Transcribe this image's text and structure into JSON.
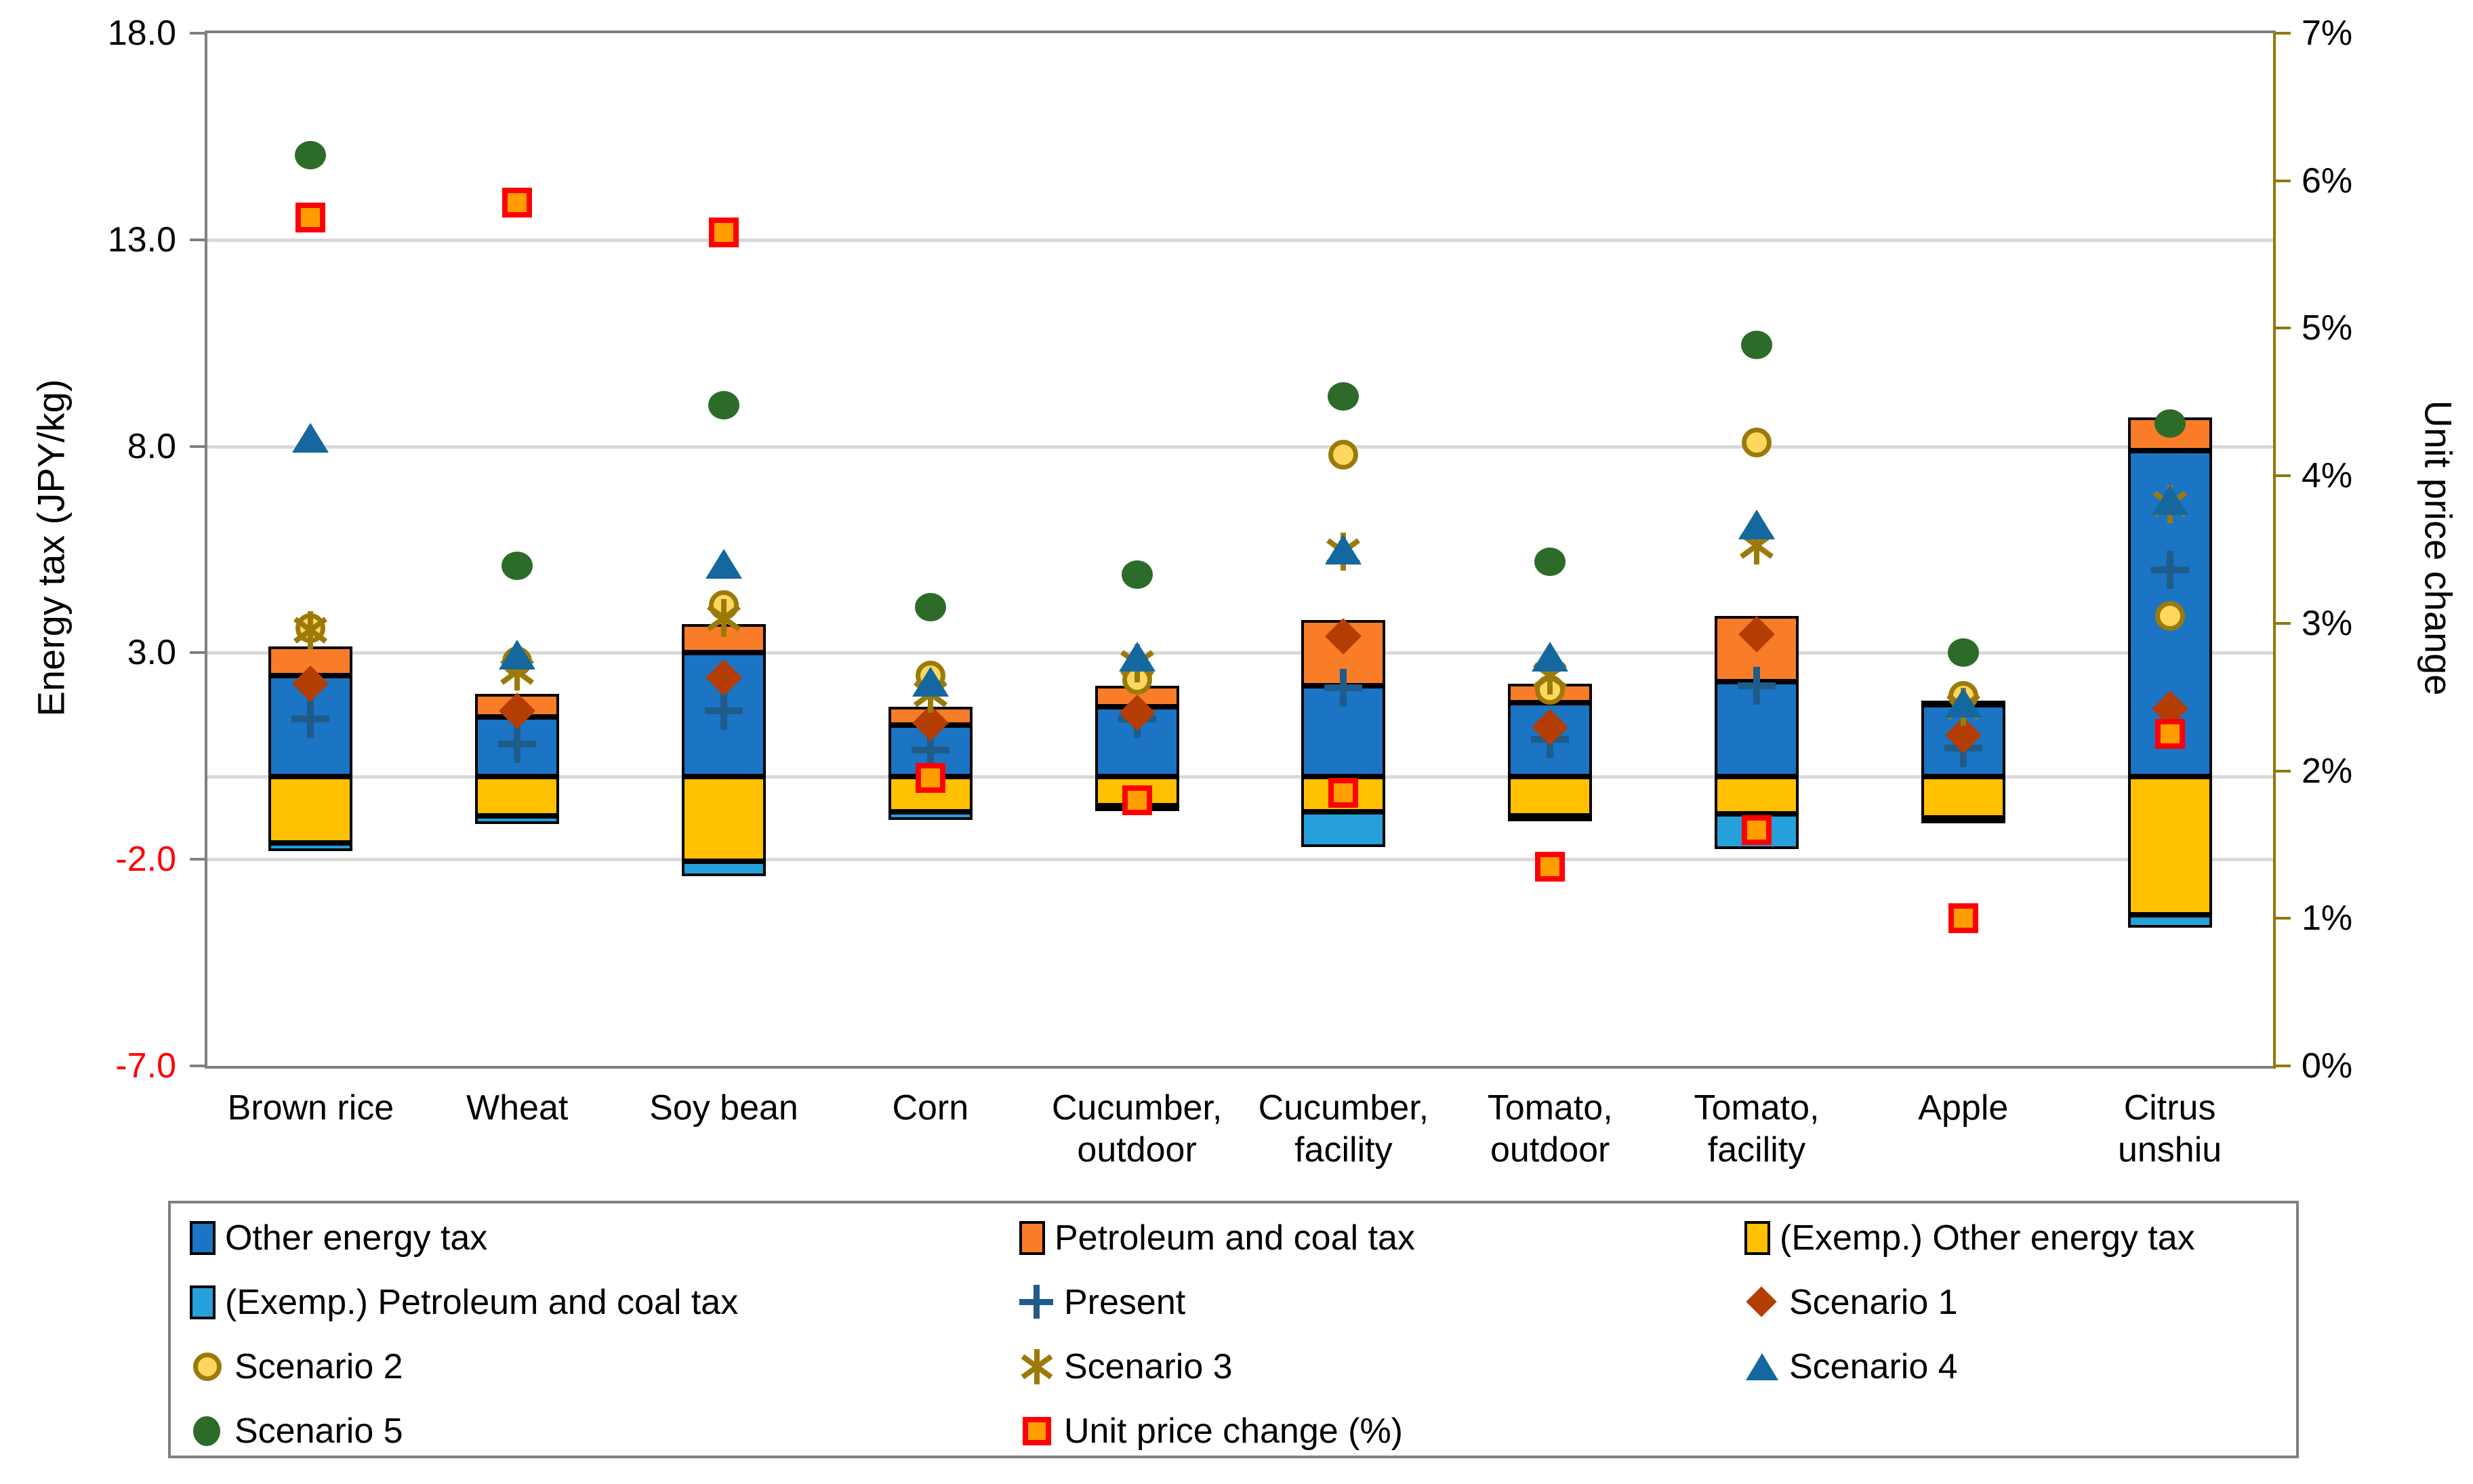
{
  "colors": {
    "bar_blue": "#1B74C4",
    "bar_orange": "#F97D28",
    "bar_yellow": "#FFC000",
    "bar_lightblue": "#25A0DA",
    "bar_border": "#000000",
    "present_plus": "#1F5C8A",
    "scenario1_diamond": "#B43D04",
    "scenario2_fill": "#FFD75E",
    "gold": "#9C7A0A",
    "scenario4_triangle": "#14689F",
    "scenario5_green": "#2C6B28",
    "unit_square_fill": "#FF9E00",
    "unit_square_border": "#FF0000",
    "gridline": "#D9D9D9",
    "axis_gray": "#808080",
    "axis_gold": "#937700",
    "negative_tick_red": "#FF0000"
  },
  "chart_data": {
    "type": "bar",
    "subtype": "stacked-bar with scatter overlay, dual axis",
    "categories": [
      "Brown rice",
      "Wheat",
      "Soy bean",
      "Corn",
      "Cucumber, outdoor",
      "Cucumber, facility",
      "Tomato, outdoor",
      "Tomato, facility",
      "Apple",
      "Citrus unshiu"
    ],
    "category_labels": [
      [
        "Brown rice"
      ],
      [
        "Wheat"
      ],
      [
        "Soy bean"
      ],
      [
        "Corn"
      ],
      [
        "Cucumber,",
        "outdoor"
      ],
      [
        "Cucumber,",
        "facility"
      ],
      [
        "Tomato,",
        "outdoor"
      ],
      [
        "Tomato,",
        "facility"
      ],
      [
        "Apple"
      ],
      [
        "Citrus",
        "unshiu"
      ]
    ],
    "bar_series": [
      {
        "name": "Other energy tax",
        "color": "#1B74C4",
        "values": [
          2.45,
          1.45,
          3.0,
          1.25,
          1.7,
          2.2,
          1.8,
          2.3,
          1.75,
          7.9
        ]
      },
      {
        "name": "Petroleum and coal tax",
        "color": "#F97D28",
        "values": [
          0.7,
          0.55,
          0.7,
          0.45,
          0.5,
          1.6,
          0.45,
          1.6,
          0.1,
          0.8
        ]
      },
      {
        "name": "(Exemp.) Other energy tax",
        "color": "#FFC000",
        "values": [
          -1.6,
          -0.95,
          -2.05,
          -0.85,
          -0.7,
          -0.85,
          -0.95,
          -0.9,
          -1.0,
          -3.35
        ]
      },
      {
        "name": "(Exemp.) Petroleum and coal tax",
        "color": "#25A0DA",
        "values": [
          -0.2,
          -0.2,
          -0.35,
          -0.2,
          -0.1,
          -0.85,
          -0.1,
          -0.85,
          -0.1,
          -0.3
        ]
      }
    ],
    "marker_series": [
      {
        "name": "Present",
        "marker": "plus",
        "axis": "left",
        "values": [
          1.4,
          0.8,
          1.6,
          0.65,
          1.4,
          2.15,
          0.9,
          2.2,
          0.7,
          5.0
        ]
      },
      {
        "name": "Scenario 1",
        "marker": "diamond",
        "axis": "left",
        "values": [
          2.25,
          1.6,
          2.4,
          1.3,
          1.55,
          3.4,
          1.2,
          3.45,
          1.0,
          1.65
        ]
      },
      {
        "name": "Scenario 2",
        "marker": "circle-outline",
        "axis": "left",
        "values": [
          3.6,
          2.8,
          4.15,
          2.45,
          2.35,
          7.8,
          2.1,
          8.1,
          1.95,
          3.9
        ]
      },
      {
        "name": "Scenario 3",
        "marker": "asterisk",
        "axis": "left",
        "values": [
          3.55,
          2.55,
          3.85,
          2.0,
          2.75,
          5.45,
          2.45,
          5.6,
          1.7,
          6.6
        ]
      },
      {
        "name": "Scenario 4",
        "marker": "triangle",
        "axis": "left",
        "values": [
          8.2,
          2.95,
          5.15,
          2.3,
          2.9,
          5.5,
          2.9,
          6.1,
          1.8,
          6.7
        ]
      },
      {
        "name": "Scenario 5",
        "marker": "circle",
        "axis": "left",
        "values": [
          15.05,
          5.1,
          9.0,
          4.1,
          4.9,
          9.2,
          5.2,
          10.45,
          3.0,
          8.55
        ]
      },
      {
        "name": "Unit price change (%)",
        "marker": "square",
        "axis": "right",
        "values": [
          5.75,
          5.85,
          5.65,
          1.95,
          1.8,
          1.85,
          1.35,
          1.6,
          1.0,
          2.25
        ]
      }
    ],
    "left_axis": {
      "title": "Energy tax (JPY/kg)",
      "min": -7,
      "max": 18,
      "ticks": [
        {
          "label": "18.0",
          "value": 18,
          "red": false
        },
        {
          "label": "13.0",
          "value": 13,
          "red": false
        },
        {
          "label": "8.0",
          "value": 8,
          "red": false
        },
        {
          "label": "3.0",
          "value": 3,
          "red": false
        },
        {
          "label": "-2.0",
          "value": -2,
          "red": true
        },
        {
          "label": "-7.0",
          "value": -7,
          "red": true
        }
      ]
    },
    "right_axis": {
      "title": "Unit price change",
      "min": 0,
      "max": 7,
      "ticks": [
        {
          "label": "7%",
          "value": 7
        },
        {
          "label": "6%",
          "value": 6
        },
        {
          "label": "5%",
          "value": 5
        },
        {
          "label": "4%",
          "value": 4
        },
        {
          "label": "3%",
          "value": 3
        },
        {
          "label": "2%",
          "value": 2
        },
        {
          "label": "1%",
          "value": 1
        },
        {
          "label": "0%",
          "value": 0
        }
      ]
    },
    "gridlines": [
      13,
      8,
      3,
      -2
    ],
    "zero_line": 0,
    "grid_on": true,
    "legend_position": "bottom"
  },
  "legend": {
    "entries": [
      {
        "row": 0,
        "col": 0,
        "ref": "bar:0"
      },
      {
        "row": 0,
        "col": 1,
        "ref": "bar:1"
      },
      {
        "row": 0,
        "col": 2,
        "ref": "bar:2"
      },
      {
        "row": 1,
        "col": 0,
        "ref": "bar:3"
      },
      {
        "row": 1,
        "col": 1,
        "ref": "marker:0"
      },
      {
        "row": 1,
        "col": 2,
        "ref": "marker:1"
      },
      {
        "row": 2,
        "col": 0,
        "ref": "marker:2"
      },
      {
        "row": 2,
        "col": 1,
        "ref": "marker:3"
      },
      {
        "row": 2,
        "col": 2,
        "ref": "marker:4"
      },
      {
        "row": 3,
        "col": 0,
        "ref": "marker:5"
      },
      {
        "row": 3,
        "col": 1,
        "ref": "marker:6"
      }
    ]
  }
}
